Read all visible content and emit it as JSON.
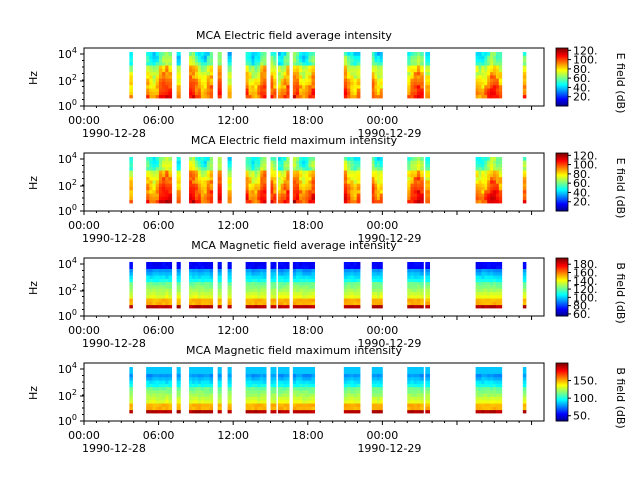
{
  "chart_data": [
    {
      "type": "heatmap",
      "title": "MCA  Electric field average intensity",
      "ylabel": "Hz",
      "y_scale": "log",
      "y_ticks": [
        "10^0",
        "10^2",
        "10^4"
      ],
      "x_ticks": [
        "00:00",
        "06:00",
        "12:00",
        "18:00",
        "00:00"
      ],
      "x_dates": [
        "1990-12-28",
        "1990-12-29"
      ],
      "xlim": [
        "1990-12-28T00:00",
        "1990-12-29T01:00"
      ],
      "colorbar": {
        "label": "E field (dB)",
        "ticks": [
          "20.",
          "40.",
          "60.",
          "80.",
          "100.",
          "120."
        ],
        "range": [
          0,
          125
        ]
      },
      "data_segments_hours": [
        [
          3.65,
          3.9
        ],
        [
          5.0,
          7.05
        ],
        [
          7.45,
          7.75
        ],
        [
          8.45,
          10.35
        ],
        [
          10.75,
          11.05
        ],
        [
          11.55,
          11.85
        ],
        [
          13.0,
          14.65
        ],
        [
          15.0,
          15.45
        ],
        [
          15.6,
          16.5
        ],
        [
          16.8,
          18.55
        ],
        [
          20.9,
          22.2
        ],
        [
          23.15,
          24.0
        ],
        [
          26.0,
          27.3
        ],
        [
          27.45,
          27.8
        ],
        [
          31.5,
          33.6
        ],
        [
          35.3,
          35.55
        ]
      ],
      "colormap": "jet",
      "field": "electric",
      "statistic": "average"
    },
    {
      "type": "heatmap",
      "title": "MCA  Electric field maximum intensity",
      "ylabel": "Hz",
      "y_scale": "log",
      "y_ticks": [
        "10^0",
        "10^2",
        "10^4"
      ],
      "x_ticks": [
        "00:00",
        "06:00",
        "12:00",
        "18:00",
        "00:00"
      ],
      "x_dates": [
        "1990-12-28",
        "1990-12-29"
      ],
      "xlim": [
        "1990-12-28T00:00",
        "1990-12-29T01:00"
      ],
      "colorbar": {
        "label": "E field (dB)",
        "ticks": [
          "20.",
          "40.",
          "60.",
          "80.",
          "100.",
          "120."
        ],
        "range": [
          0,
          125
        ]
      },
      "data_segments_hours": [
        [
          3.65,
          3.9
        ],
        [
          5.0,
          7.05
        ],
        [
          7.45,
          7.75
        ],
        [
          8.45,
          10.35
        ],
        [
          10.75,
          11.05
        ],
        [
          11.55,
          11.85
        ],
        [
          13.0,
          14.65
        ],
        [
          15.0,
          15.45
        ],
        [
          15.6,
          16.5
        ],
        [
          16.8,
          18.55
        ],
        [
          20.9,
          22.2
        ],
        [
          23.15,
          24.0
        ],
        [
          26.0,
          27.3
        ],
        [
          27.45,
          27.8
        ],
        [
          31.5,
          33.6
        ],
        [
          35.3,
          35.55
        ]
      ],
      "colormap": "jet",
      "field": "electric",
      "statistic": "maximum"
    },
    {
      "type": "heatmap",
      "title": "MCA  Magnetic field average intensity",
      "ylabel": "Hz",
      "y_scale": "log",
      "y_ticks": [
        "10^0",
        "10^2",
        "10^4"
      ],
      "x_ticks": [
        "00:00",
        "06:00",
        "12:00",
        "18:00",
        "00:00"
      ],
      "x_dates": [
        "1990-12-28",
        "1990-12-29"
      ],
      "xlim": [
        "1990-12-28T00:00",
        "1990-12-29T01:00"
      ],
      "colorbar": {
        "label": "B field (dB)",
        "ticks": [
          "60.",
          "80.",
          "100.",
          "120.",
          "140.",
          "160.",
          "180."
        ],
        "range": [
          55,
          195
        ]
      },
      "data_segments_hours": [
        [
          3.65,
          3.9
        ],
        [
          5.0,
          7.05
        ],
        [
          7.45,
          7.75
        ],
        [
          8.45,
          10.35
        ],
        [
          10.75,
          11.05
        ],
        [
          11.55,
          11.85
        ],
        [
          13.0,
          14.65
        ],
        [
          15.0,
          15.45
        ],
        [
          15.6,
          16.5
        ],
        [
          16.8,
          18.55
        ],
        [
          20.9,
          22.2
        ],
        [
          23.15,
          24.0
        ],
        [
          26.0,
          27.3
        ],
        [
          27.45,
          27.8
        ],
        [
          31.5,
          33.6
        ],
        [
          35.3,
          35.55
        ]
      ],
      "colormap": "jet",
      "field": "magnetic",
      "statistic": "average"
    },
    {
      "type": "heatmap",
      "title": "MCA  Magnetic field maximum intensity",
      "ylabel": "Hz",
      "y_scale": "log",
      "y_ticks": [
        "10^0",
        "10^2",
        "10^4"
      ],
      "x_ticks": [
        "00:00",
        "06:00",
        "12:00",
        "18:00",
        "00:00"
      ],
      "x_dates": [
        "1990-12-28",
        "1990-12-29"
      ],
      "xlim": [
        "1990-12-28T00:00",
        "1990-12-29T01:00"
      ],
      "colorbar": {
        "label": "B field (dB)",
        "ticks": [
          "50.",
          "100.",
          "150."
        ],
        "range": [
          35,
          200
        ]
      },
      "data_segments_hours": [
        [
          3.65,
          3.9
        ],
        [
          5.0,
          7.05
        ],
        [
          7.45,
          7.75
        ],
        [
          8.45,
          10.35
        ],
        [
          10.75,
          11.05
        ],
        [
          11.55,
          11.85
        ],
        [
          13.0,
          14.65
        ],
        [
          15.0,
          15.45
        ],
        [
          15.6,
          16.5
        ],
        [
          16.8,
          18.55
        ],
        [
          20.9,
          22.2
        ],
        [
          23.15,
          24.0
        ],
        [
          26.0,
          27.3
        ],
        [
          27.45,
          27.8
        ],
        [
          31.5,
          33.6
        ],
        [
          35.3,
          35.55
        ]
      ],
      "colormap": "jet",
      "field": "magnetic",
      "statistic": "maximum"
    }
  ]
}
